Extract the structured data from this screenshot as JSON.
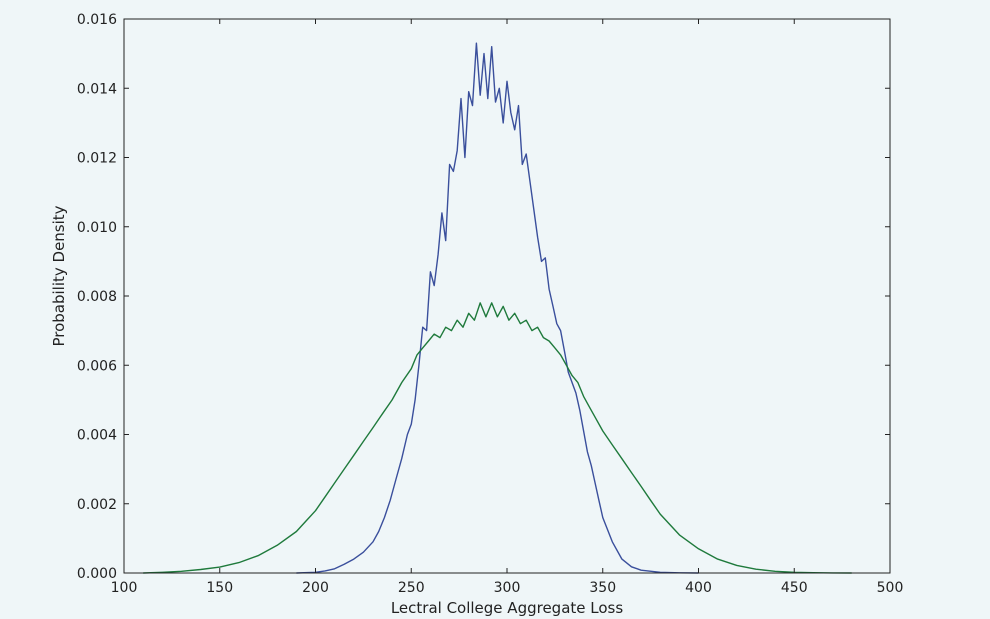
{
  "chart_data": {
    "type": "line",
    "title": "",
    "xlabel": "Lectral College Aggregate Loss",
    "ylabel": "Probability Density",
    "xlim": [
      100,
      500
    ],
    "ylim": [
      0,
      0.016
    ],
    "grid": false,
    "xticks": [
      100,
      150,
      200,
      250,
      300,
      350,
      400,
      450,
      500
    ],
    "xtick_labels": [
      "100",
      "150",
      "200",
      "250",
      "300",
      "350",
      "400",
      "450",
      "500"
    ],
    "yticks": [
      0,
      0.002,
      0.004,
      0.006,
      0.008,
      0.01,
      0.012,
      0.014,
      0.016
    ],
    "ytick_labels": [
      "0.000",
      "0.002",
      "0.004",
      "0.006",
      "0.008",
      "0.010",
      "0.012",
      "0.014",
      "0.016"
    ],
    "series": [
      {
        "color": "#3a4f9c",
        "x": [
          190,
          200,
          205,
          210,
          215,
          220,
          225,
          230,
          233,
          236,
          239,
          242,
          245,
          248,
          250,
          252,
          254,
          256,
          258,
          260,
          262,
          264,
          266,
          268,
          270,
          272,
          274,
          276,
          278,
          280,
          282,
          284,
          286,
          288,
          290,
          292,
          294,
          296,
          298,
          300,
          302,
          304,
          306,
          308,
          310,
          312,
          314,
          316,
          318,
          320,
          322,
          324,
          326,
          328,
          330,
          332,
          334,
          336,
          338,
          340,
          342,
          344,
          346,
          348,
          350,
          355,
          360,
          365,
          370,
          380,
          390,
          400
        ],
        "y": [
          0.0,
          2e-05,
          6e-05,
          0.00012,
          0.00025,
          0.0004,
          0.0006,
          0.0009,
          0.0012,
          0.0016,
          0.0021,
          0.0027,
          0.0033,
          0.004,
          0.0043,
          0.005,
          0.006,
          0.0071,
          0.007,
          0.0087,
          0.0083,
          0.0092,
          0.0104,
          0.0096,
          0.0118,
          0.0116,
          0.0122,
          0.0137,
          0.012,
          0.0139,
          0.0135,
          0.0153,
          0.0138,
          0.015,
          0.0137,
          0.0152,
          0.0136,
          0.014,
          0.013,
          0.0142,
          0.0133,
          0.0128,
          0.0135,
          0.0118,
          0.0121,
          0.0113,
          0.0105,
          0.0097,
          0.009,
          0.0091,
          0.0082,
          0.0077,
          0.0072,
          0.007,
          0.0064,
          0.0058,
          0.0055,
          0.0052,
          0.0047,
          0.0041,
          0.0035,
          0.0031,
          0.0026,
          0.0021,
          0.0016,
          0.0009,
          0.0004,
          0.00018,
          8e-05,
          2e-05,
          5e-06,
          0.0
        ]
      },
      {
        "color": "#1f7a3c",
        "x": [
          110,
          120,
          130,
          140,
          150,
          160,
          170,
          180,
          190,
          195,
          200,
          205,
          210,
          215,
          220,
          225,
          230,
          235,
          240,
          245,
          250,
          253,
          256,
          259,
          262,
          265,
          268,
          271,
          274,
          277,
          280,
          283,
          286,
          289,
          292,
          295,
          298,
          301,
          304,
          307,
          310,
          313,
          316,
          319,
          322,
          325,
          328,
          331,
          334,
          337,
          340,
          343,
          346,
          350,
          355,
          360,
          365,
          370,
          375,
          380,
          385,
          390,
          400,
          410,
          420,
          430,
          440,
          450,
          460,
          470,
          480
        ],
        "y": [
          0.0,
          2e-05,
          5e-05,
          0.0001,
          0.00017,
          0.0003,
          0.0005,
          0.0008,
          0.0012,
          0.0015,
          0.0018,
          0.0022,
          0.0026,
          0.003,
          0.0034,
          0.0038,
          0.0042,
          0.0046,
          0.005,
          0.0055,
          0.0059,
          0.0063,
          0.0065,
          0.0067,
          0.0069,
          0.0068,
          0.0071,
          0.007,
          0.0073,
          0.0071,
          0.0075,
          0.0073,
          0.0078,
          0.0074,
          0.0078,
          0.0074,
          0.0077,
          0.0073,
          0.0075,
          0.0072,
          0.0073,
          0.007,
          0.0071,
          0.0068,
          0.0067,
          0.0065,
          0.0063,
          0.006,
          0.0057,
          0.0055,
          0.0051,
          0.0048,
          0.0045,
          0.0041,
          0.0037,
          0.0033,
          0.0029,
          0.0025,
          0.0021,
          0.0017,
          0.0014,
          0.0011,
          0.0007,
          0.0004,
          0.00022,
          0.00011,
          5e-05,
          2e-05,
          1e-05,
          3e-06,
          0.0
        ]
      }
    ]
  }
}
